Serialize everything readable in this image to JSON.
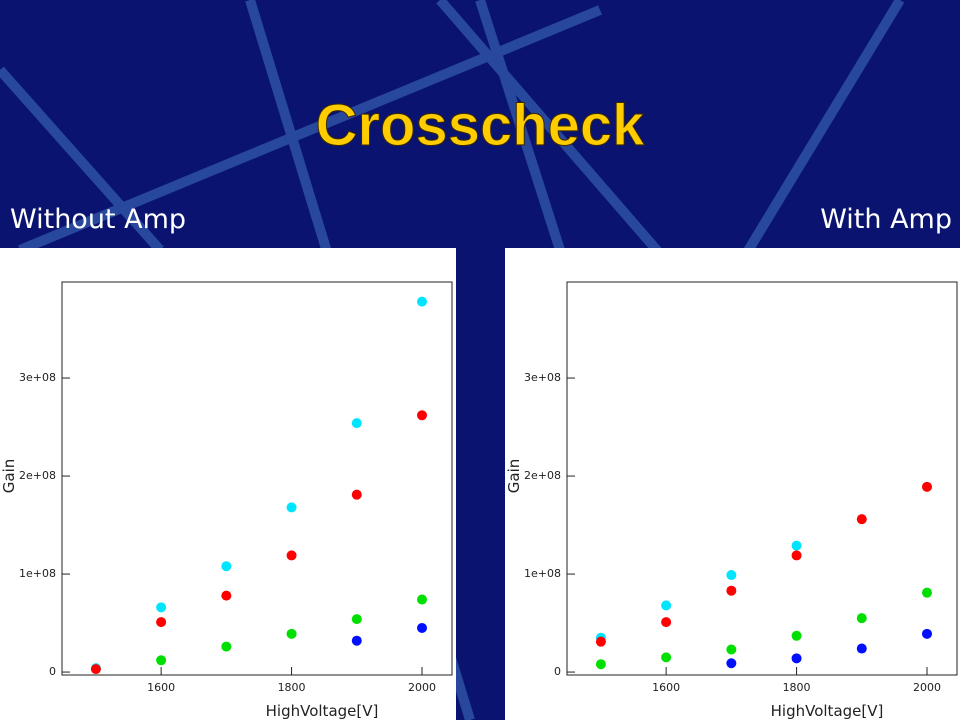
{
  "header": {
    "title": "Crosscheck",
    "left_label": "Without Amp",
    "right_label": "With Amp"
  },
  "chart_data": [
    {
      "type": "scatter",
      "x_label": "HighVoltage[V]",
      "y_label": "Gain",
      "x": [
        1500,
        1600,
        1700,
        1800,
        1900,
        2000
      ],
      "series": [
        {
          "color": "#00e5ff",
          "values": [
            4000000,
            66000000,
            108000000,
            168000000,
            254000000,
            378000000
          ]
        },
        {
          "color": "#ff0000",
          "values": [
            3000000,
            51000000,
            78000000,
            119000000,
            181000000,
            262000000
          ]
        },
        {
          "color": "#00e000",
          "values": [
            null,
            12000000,
            26000000,
            39000000,
            54000000,
            74000000
          ]
        },
        {
          "color": "#0010ff",
          "values": [
            null,
            null,
            null,
            null,
            32000000,
            45000000
          ]
        }
      ],
      "xlim": [
        1448,
        2046
      ],
      "ylim": [
        -3000000,
        398000000
      ],
      "xticks": [
        1600,
        1800,
        2000
      ],
      "yticks": [
        0,
        {
          "value": 100000000,
          "label": "1e+08"
        },
        {
          "value": 200000000,
          "label": "2e+08"
        },
        {
          "value": 300000000,
          "label": "3e+08"
        }
      ]
    },
    {
      "type": "scatter",
      "x_label": "HighVoltage[V]",
      "y_label": "Gain",
      "x": [
        1500,
        1600,
        1700,
        1800,
        1900,
        2000
      ],
      "series": [
        {
          "color": "#00e5ff",
          "values": [
            35000000,
            68000000,
            99000000,
            129000000,
            null,
            null
          ]
        },
        {
          "color": "#ff0000",
          "values": [
            31000000,
            51000000,
            83000000,
            119000000,
            156000000,
            189000000
          ]
        },
        {
          "color": "#00e000",
          "values": [
            8000000,
            15000000,
            23000000,
            37000000,
            55000000,
            81000000
          ]
        },
        {
          "color": "#0010ff",
          "values": [
            null,
            null,
            9000000,
            14000000,
            24000000,
            39000000
          ]
        }
      ],
      "xlim": [
        1448,
        2046
      ],
      "ylim": [
        -3000000,
        398000000
      ],
      "xticks": [
        1600,
        1800,
        2000
      ],
      "yticks": [
        0,
        {
          "value": 100000000,
          "label": "1e+08"
        },
        {
          "value": 200000000,
          "label": "2e+08"
        },
        {
          "value": 300000000,
          "label": "3e+08"
        }
      ]
    }
  ]
}
